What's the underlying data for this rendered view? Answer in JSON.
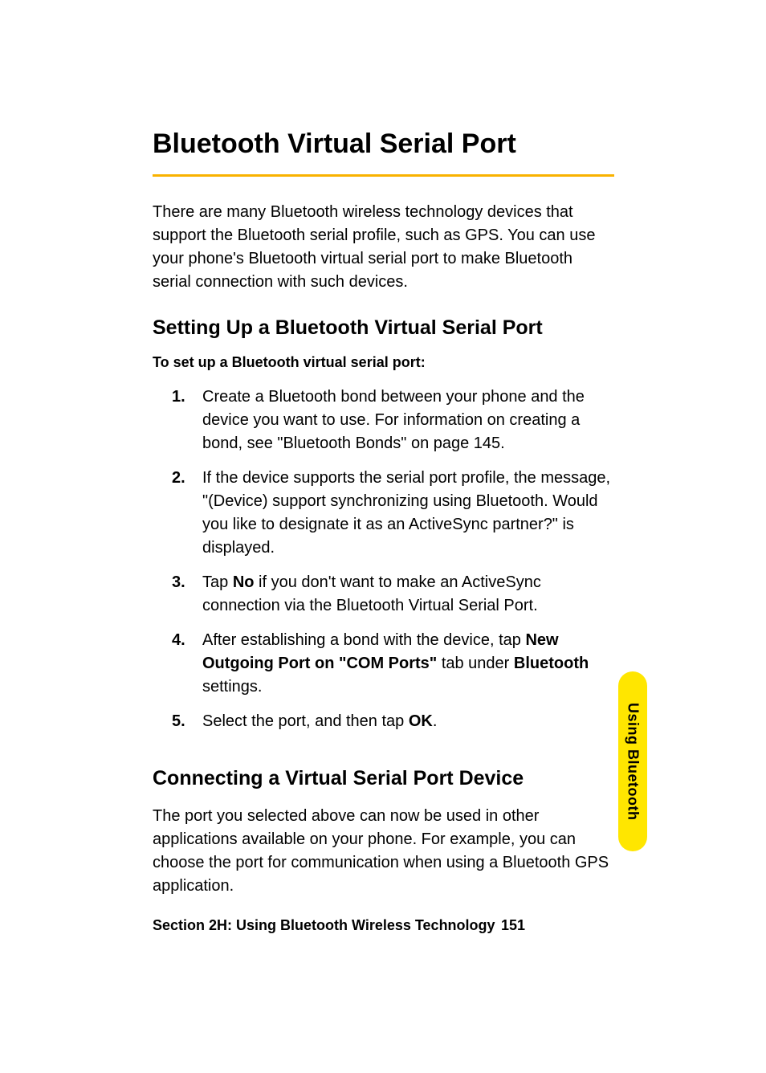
{
  "page": {
    "main_title": "Bluetooth Virtual Serial Port",
    "intro_text": "There are many Bluetooth wireless technology devices that support the Bluetooth serial profile, such as GPS. You can use your phone's Bluetooth virtual serial port to make Bluetooth serial connection with such devices.",
    "section1": {
      "heading": "Setting Up a Bluetooth Virtual Serial Port",
      "instruction_label": "To set up a Bluetooth virtual serial port:",
      "steps": [
        {
          "num": "1.",
          "text": "Create a Bluetooth bond between your phone and the device you want to use. For information on creating a bond, see \"Bluetooth Bonds\" on page 145."
        },
        {
          "num": "2.",
          "text": "If the device supports the serial port profile, the message, \"(Device) support synchronizing using Bluetooth. Would you like to designate it as an ActiveSync partner?\" is displayed."
        },
        {
          "num": "3.",
          "pre": "Tap ",
          "bold1": "No",
          "post": " if you don't want to make an ActiveSync connection via the Bluetooth Virtual Serial Port."
        },
        {
          "num": "4.",
          "pre": "After establishing a bond with the device, tap ",
          "bold1": "New Outgoing Port on \"COM Ports\"",
          "mid": " tab under ",
          "bold2": "Bluetooth",
          "post": " settings."
        },
        {
          "num": "5.",
          "pre": "Select the port, and then tap ",
          "bold1": "OK",
          "post": "."
        }
      ]
    },
    "section2": {
      "heading": "Connecting a Virtual Serial Port Device",
      "body": "The port you selected above can now be used in other applications available on your phone. For example, you can choose the port for communication when using a Bluetooth GPS application."
    },
    "side_tab": "Using Bluetooth",
    "footer_section": "Section 2H: Using Bluetooth Wireless Technology",
    "footer_page": "151"
  },
  "colors": {
    "accent": "#f9b200",
    "tab_bg": "#ffe600",
    "text": "#000000",
    "background": "#ffffff"
  }
}
